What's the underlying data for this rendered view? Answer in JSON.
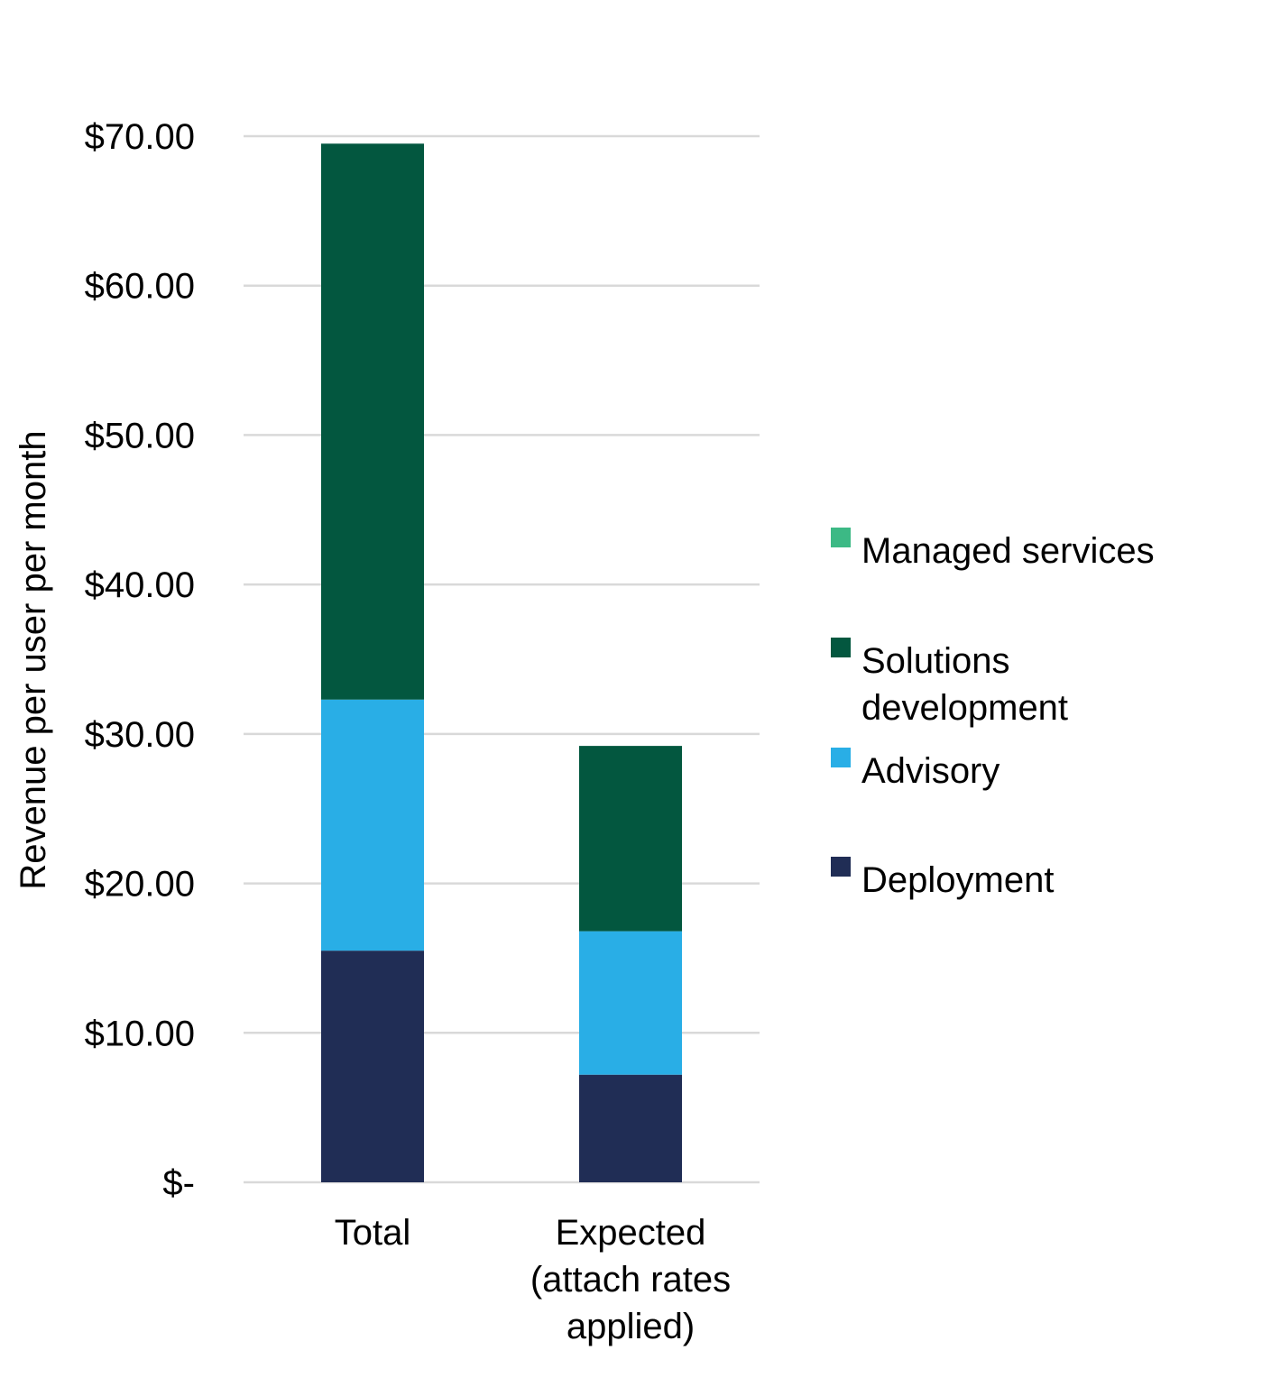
{
  "chart_data": {
    "type": "bar",
    "stacked": true,
    "title": "",
    "xlabel": "",
    "ylabel": "Revenue per user per month",
    "ylim": [
      0,
      70
    ],
    "yticks": [
      0,
      10,
      20,
      30,
      40,
      50,
      60,
      70
    ],
    "ytick_labels": [
      "$-",
      "$10.00",
      "$20.00",
      "$30.00",
      "$40.00",
      "$50.00",
      "$60.00",
      "$70.00"
    ],
    "grid": true,
    "legend_position": "right",
    "categories": [
      [
        "Total"
      ],
      [
        "Expected",
        "(attach rates",
        "applied)"
      ]
    ],
    "series": [
      {
        "name": "Deployment",
        "color": "#202D55",
        "values": [
          15.5,
          7.2
        ]
      },
      {
        "name": "Advisory",
        "color": "#29AEE6",
        "values": [
          16.8,
          9.6
        ]
      },
      {
        "name": "Solutions development",
        "color": "#03573F",
        "values": [
          37.2,
          12.4
        ]
      },
      {
        "name": "Managed services",
        "color": "#3CB985",
        "values": [
          0,
          0
        ]
      }
    ],
    "legend": [
      {
        "series": "Managed services",
        "lines": [
          "Managed services"
        ]
      },
      {
        "series": "Solutions development",
        "lines": [
          "Solutions",
          "development"
        ]
      },
      {
        "series": "Advisory",
        "lines": [
          "Advisory"
        ]
      },
      {
        "series": "Deployment",
        "lines": [
          "Deployment"
        ]
      }
    ]
  }
}
